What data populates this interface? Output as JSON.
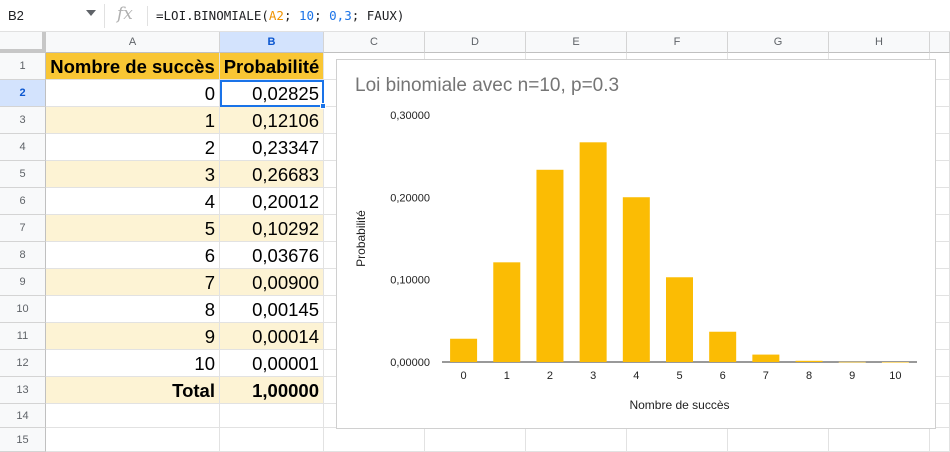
{
  "formula_bar": {
    "cell_ref": "B2",
    "fx_label": "fx",
    "formula": {
      "prefix": "=LOI.BINOMIALE(",
      "arg1": "A2",
      "sep1": "; ",
      "arg2": "10",
      "sep2": "; ",
      "arg3": "0,3",
      "sep3": "; ",
      "arg4": "FAUX",
      "suffix": ")"
    }
  },
  "columns": [
    "A",
    "B",
    "C",
    "D",
    "E",
    "F",
    "G",
    "H"
  ],
  "rows": [
    "1",
    "2",
    "3",
    "4",
    "5",
    "6",
    "7",
    "8",
    "9",
    "10",
    "11",
    "12",
    "13",
    "14",
    "15"
  ],
  "table": {
    "header": [
      "Nombre de succès",
      "Probabilité"
    ],
    "data": [
      [
        "0",
        "0,02825"
      ],
      [
        "1",
        "0,12106"
      ],
      [
        "2",
        "0,23347"
      ],
      [
        "3",
        "0,26683"
      ],
      [
        "4",
        "0,20012"
      ],
      [
        "5",
        "0,10292"
      ],
      [
        "6",
        "0,03676"
      ],
      [
        "7",
        "0,00900"
      ],
      [
        "8",
        "0,00145"
      ],
      [
        "9",
        "0,00014"
      ],
      [
        "10",
        "0,00001"
      ]
    ],
    "total": [
      "Total",
      "1,00000"
    ]
  },
  "colors": {
    "header_fill": "#f9c634",
    "band_fill": "#fdf3d4",
    "bar_fill": "#fbbc04",
    "selection": "#1a73e8"
  },
  "chart_data": {
    "type": "bar",
    "title": "Loi binomiale avec n=10, p=0.3",
    "xlabel": "Nombre de succès",
    "ylabel": "Probabilité",
    "categories": [
      "0",
      "1",
      "2",
      "3",
      "4",
      "5",
      "6",
      "7",
      "8",
      "9",
      "10"
    ],
    "values": [
      0.02825,
      0.12106,
      0.23347,
      0.26683,
      0.20012,
      0.10292,
      0.03676,
      0.009,
      0.00145,
      0.00014,
      1e-05
    ],
    "ylim": [
      0,
      0.3
    ],
    "yticks": [
      0,
      0.1,
      0.2,
      0.3
    ],
    "ytick_labels": [
      "0,00000",
      "0,10000",
      "0,20000",
      "0,30000"
    ],
    "grid": false,
    "legend": "none"
  }
}
